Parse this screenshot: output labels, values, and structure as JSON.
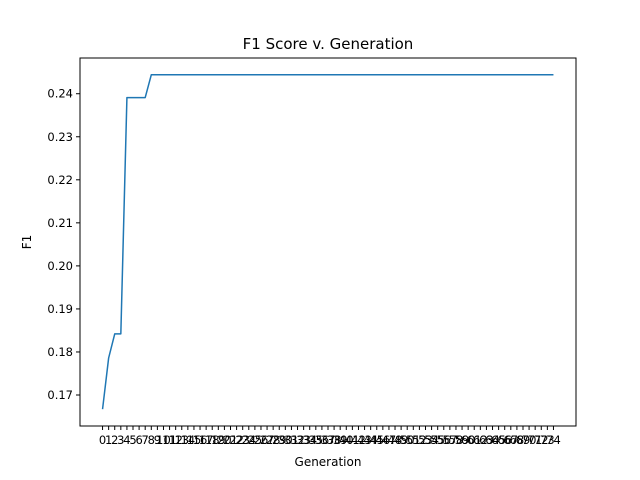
{
  "chart_data": {
    "type": "line",
    "title": "F1 Score v. Generation",
    "xlabel": "Generation",
    "ylabel": "F1",
    "x": [
      0,
      1,
      2,
      3,
      4,
      5,
      6,
      7,
      8,
      9,
      10,
      11,
      12,
      13,
      14,
      15,
      16,
      17,
      18,
      19,
      20,
      21,
      22,
      23,
      24,
      25,
      26,
      27,
      28,
      29,
      30,
      31,
      32,
      33,
      34,
      35,
      36,
      37,
      38,
      39,
      40,
      41,
      42,
      43,
      44,
      45,
      46,
      47,
      48,
      49,
      50,
      51,
      52,
      53,
      54,
      55,
      56,
      57,
      58,
      59,
      60,
      61,
      62,
      63,
      64,
      65,
      66,
      67,
      68,
      69,
      70,
      71,
      72,
      73,
      74
    ],
    "series": [
      {
        "color": "#1f77b4",
        "values": [
          0.1667,
          0.1786,
          0.1842,
          0.1842,
          0.2391,
          0.2391,
          0.2391,
          0.2391,
          0.2444,
          0.2444,
          0.2444,
          0.2444,
          0.2444,
          0.2444,
          0.2444,
          0.2444,
          0.2444,
          0.2444,
          0.2444,
          0.2444,
          0.2444,
          0.2444,
          0.2444,
          0.2444,
          0.2444,
          0.2444,
          0.2444,
          0.2444,
          0.2444,
          0.2444,
          0.2444,
          0.2444,
          0.2444,
          0.2444,
          0.2444,
          0.2444,
          0.2444,
          0.2444,
          0.2444,
          0.2444,
          0.2444,
          0.2444,
          0.2444,
          0.2444,
          0.2444,
          0.2444,
          0.2444,
          0.2444,
          0.2444,
          0.2444,
          0.2444,
          0.2444,
          0.2444,
          0.2444,
          0.2444,
          0.2444,
          0.2444,
          0.2444,
          0.2444,
          0.2444,
          0.2444,
          0.2444,
          0.2444,
          0.2444,
          0.2444,
          0.2444,
          0.2444,
          0.2444,
          0.2444,
          0.2444,
          0.2444,
          0.2444,
          0.2444,
          0.2444,
          0.2444
        ]
      }
    ],
    "yticks": [
      "0.17",
      "0.18",
      "0.19",
      "0.20",
      "0.21",
      "0.22",
      "0.23",
      "0.24"
    ],
    "ytick_values": [
      0.17,
      0.18,
      0.19,
      0.2,
      0.21,
      0.22,
      0.23,
      0.24
    ],
    "ylim": [
      0.1628,
      0.2483
    ],
    "xlim": [
      -3.7,
      77.7
    ],
    "grid": false
  }
}
